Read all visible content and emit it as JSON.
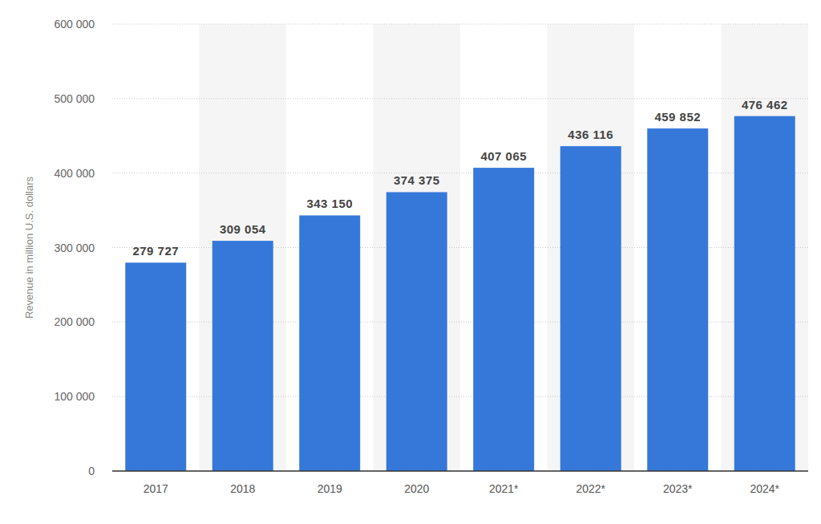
{
  "chart_data": {
    "type": "bar",
    "y_label": "Revenue in million U.S. dollars",
    "categories": [
      "2017",
      "2018",
      "2019",
      "2020",
      "2021*",
      "2022*",
      "2023*",
      "2024*"
    ],
    "values": [
      279727,
      309054,
      343150,
      374375,
      407065,
      436116,
      459852,
      476462
    ],
    "value_labels": [
      "279 727",
      "309 054",
      "343 150",
      "374 375",
      "407 065",
      "436 116",
      "459 852",
      "476 462"
    ],
    "color": "#3578d9",
    "ylim": [
      0,
      600000
    ],
    "yticks": [
      0,
      {
        "value": 100000,
        "label": "100 000"
      },
      {
        "value": 200000,
        "label": "200 000"
      },
      {
        "value": 300000,
        "label": "300 000"
      },
      {
        "value": 400000,
        "label": "400 000"
      },
      {
        "value": 500000,
        "label": "500 000"
      },
      {
        "value": 600000,
        "label": "600 000"
      }
    ],
    "grid": true,
    "data_labels": true
  }
}
